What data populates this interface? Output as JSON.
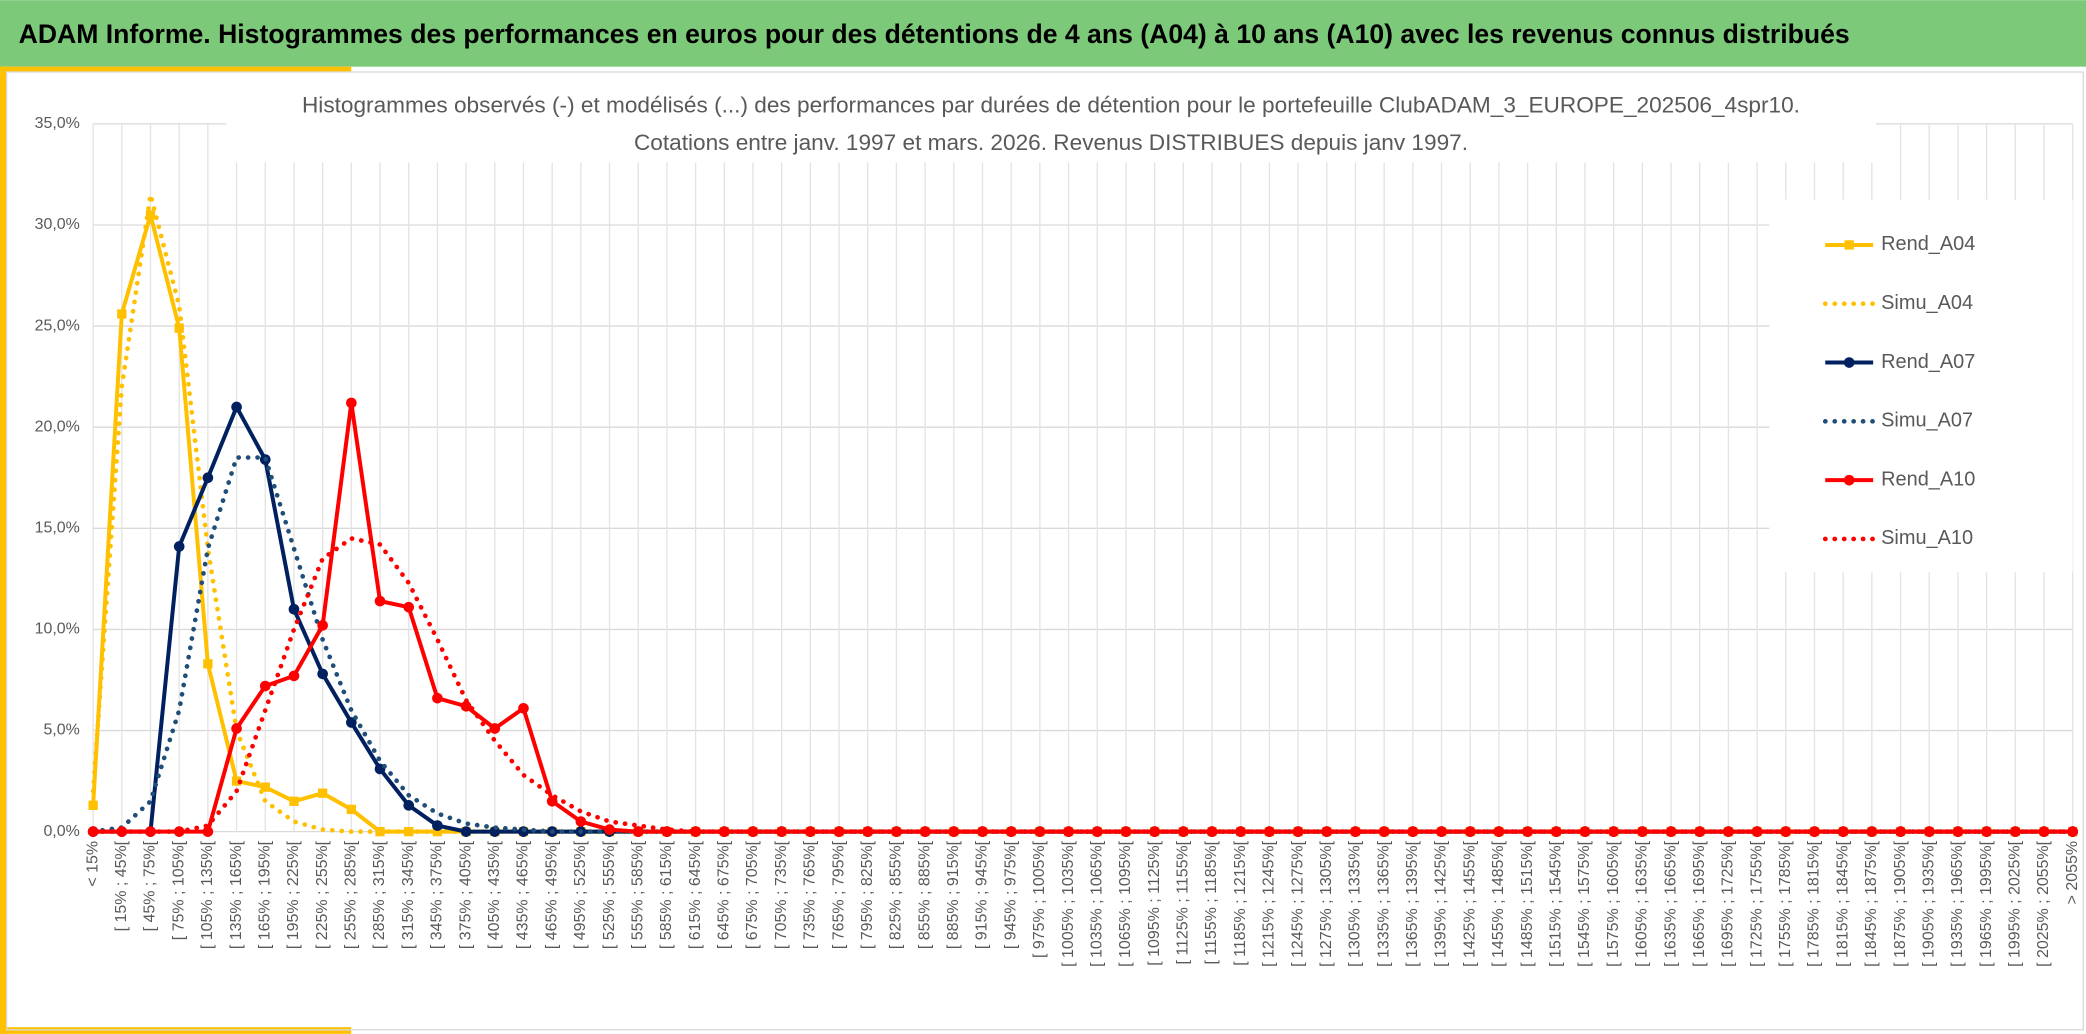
{
  "chart_data": {
    "type": "line",
    "header": "ADAM Informe. Histogrammes des performances en euros pour des détentions de 4 ans (A04) à 10 ans (A10) avec les revenus connus distribués",
    "title": "Histogrammes observés (-) et modélisés (...) des performances par durées de détention pour le portefeuille ClubADAM_3_EUROPE_202506_4spr10.",
    "subtitle": "Cotations entre janv. 1997 et mars. 2026. Revenus DISTRIBUES depuis janv 1997.",
    "categories": [
      "< 15%",
      "[ 15% ; 45%[",
      "[ 45% ; 75%[",
      "[ 75% ; 105%[",
      "[ 105% ; 135%[",
      "[ 135% ; 165%[",
      "[ 165% ; 195%[",
      "[ 195% ; 225%[",
      "[ 225% ; 255%[",
      "[ 255% ; 285%[",
      "[ 285% ; 315%[",
      "[ 315% ; 345%[",
      "[ 345% ; 375%[",
      "[ 375% ; 405%[",
      "[ 405% ; 435%[",
      "[ 435% ; 465%[",
      "[ 465% ; 495%[",
      "[ 495% ; 525%[",
      "[ 525% ; 555%[",
      "[ 555% ; 585%[",
      "[ 585% ; 615%[",
      "[ 615% ; 645%[",
      "[ 645% ; 675%[",
      "[ 675% ; 705%[",
      "[ 705% ; 735%[",
      "[ 735% ; 765%[",
      "[ 765% ; 795%[",
      "[ 795% ; 825%[",
      "[ 825% ; 855%[",
      "[ 855% ; 885%[",
      "[ 885% ; 915%[",
      "[ 915% ; 945%[",
      "[ 945% ; 975%[",
      "[ 975% ; 1005%[",
      "[ 1005% ; 1035%[",
      "[ 1035% ; 1065%[",
      "[ 1065% ; 1095%[",
      "[ 1095% ; 1125%[",
      "[ 1125% ; 1155%[",
      "[ 1155% ; 1185%[",
      "[ 1185% ; 1215%[",
      "[ 1215% ; 1245%[",
      "[ 1245% ; 1275%[",
      "[ 1275% ; 1305%[",
      "[ 1305% ; 1335%[",
      "[ 1335% ; 1365%[",
      "[ 1365% ; 1395%[",
      "[ 1395% ; 1425%[",
      "[ 1425% ; 1455%[",
      "[ 1455% ; 1485%[",
      "[ 1485% ; 1515%[",
      "[ 1515% ; 1545%[",
      "[ 1545% ; 1575%[",
      "[ 1575% ; 1605%[",
      "[ 1605% ; 1635%[",
      "[ 1635% ; 1665%[",
      "[ 1665% ; 1695%[",
      "[ 1695% ; 1725%[",
      "[ 1725% ; 1755%[",
      "[ 1755% ; 1785%[",
      "[ 1785% ; 1815%[",
      "[ 1815% ; 1845%[",
      "[ 1845% ; 1875%[",
      "[ 1875% ; 1905%[",
      "[ 1905% ; 1935%[",
      "[ 1935% ; 1965%[",
      "[ 1965% ; 1995%[",
      "[ 1995% ; 2025%[",
      "[ 2025% ; 2055%[",
      "> 2055%"
    ],
    "series": [
      {
        "name": "Rend_A04",
        "color": "#ffc000",
        "dash": "solid",
        "marker": "square",
        "values": [
          1.3,
          25.6,
          30.5,
          24.9,
          8.3,
          2.5,
          2.2,
          1.5,
          1.9,
          1.1,
          0,
          0,
          0,
          0,
          0,
          0,
          0,
          0,
          0,
          0,
          0,
          0,
          0,
          0,
          0,
          0,
          0,
          0,
          0,
          0,
          0,
          0,
          0,
          0,
          0,
          0,
          0,
          0,
          0,
          0,
          0,
          0,
          0,
          0,
          0,
          0,
          0,
          0,
          0,
          0,
          0,
          0,
          0,
          0,
          0,
          0,
          0,
          0,
          0,
          0,
          0,
          0,
          0,
          0,
          0,
          0,
          0,
          0,
          0,
          0
        ]
      },
      {
        "name": "Simu_A04",
        "color": "#ffc000",
        "dash": "dotted",
        "marker": "none",
        "values": [
          2,
          22,
          31.5,
          26,
          14,
          5,
          1.5,
          0.5,
          0.1,
          0,
          0,
          0,
          0,
          0,
          0,
          0,
          0,
          0,
          0,
          0,
          0,
          0,
          0,
          0,
          0,
          0,
          0,
          0,
          0,
          0,
          0,
          0,
          0,
          0,
          0,
          0,
          0,
          0,
          0,
          0,
          0,
          0,
          0,
          0,
          0,
          0,
          0,
          0,
          0,
          0,
          0,
          0,
          0,
          0,
          0,
          0,
          0,
          0,
          0,
          0,
          0,
          0,
          0,
          0,
          0,
          0,
          0,
          0,
          0,
          0
        ]
      },
      {
        "name": "Rend_A07",
        "color": "#002060",
        "dash": "solid",
        "marker": "circle",
        "values": [
          0,
          0,
          0,
          14.1,
          17.5,
          21,
          18.4,
          11,
          7.8,
          5.4,
          3.1,
          1.3,
          0.3,
          0,
          0,
          0,
          0,
          0,
          0,
          0,
          0,
          0,
          0,
          0,
          0,
          0,
          0,
          0,
          0,
          0,
          0,
          0,
          0,
          0,
          0,
          0,
          0,
          0,
          0,
          0,
          0,
          0,
          0,
          0,
          0,
          0,
          0,
          0,
          0,
          0,
          0,
          0,
          0,
          0,
          0,
          0,
          0,
          0,
          0,
          0,
          0,
          0,
          0,
          0,
          0,
          0,
          0,
          0,
          0,
          0
        ]
      },
      {
        "name": "Simu_A07",
        "color": "#1f4e79",
        "dash": "dotted",
        "marker": "none",
        "values": [
          0,
          0.2,
          1.5,
          6,
          14,
          18.5,
          18.5,
          14,
          9.5,
          6,
          3.5,
          1.8,
          0.9,
          0.4,
          0.2,
          0.1,
          0,
          0,
          0,
          0,
          0,
          0,
          0,
          0,
          0,
          0,
          0,
          0,
          0,
          0,
          0,
          0,
          0,
          0,
          0,
          0,
          0,
          0,
          0,
          0,
          0,
          0,
          0,
          0,
          0,
          0,
          0,
          0,
          0,
          0,
          0,
          0,
          0,
          0,
          0,
          0,
          0,
          0,
          0,
          0,
          0,
          0,
          0,
          0,
          0,
          0,
          0,
          0,
          0,
          0
        ]
      },
      {
        "name": "Rend_A10",
        "color": "#ff0000",
        "dash": "solid",
        "marker": "circle",
        "values": [
          0,
          0,
          0,
          0,
          0,
          5.1,
          7.2,
          7.7,
          10.2,
          21.2,
          11.4,
          11.1,
          6.6,
          6.2,
          5.1,
          6.1,
          1.5,
          0.5,
          0.1,
          0,
          0,
          0,
          0,
          0,
          0,
          0,
          0,
          0,
          0,
          0,
          0,
          0,
          0,
          0,
          0,
          0,
          0,
          0,
          0,
          0,
          0,
          0,
          0,
          0,
          0,
          0,
          0,
          0,
          0,
          0,
          0,
          0,
          0,
          0,
          0,
          0,
          0,
          0,
          0,
          0,
          0,
          0,
          0,
          0,
          0,
          0,
          0,
          0,
          0,
          0
        ]
      },
      {
        "name": "Simu_A10",
        "color": "#ff0000",
        "dash": "dotted",
        "marker": "none",
        "values": [
          0,
          0,
          0,
          0,
          0.3,
          2,
          6,
          10,
          13.5,
          14.5,
          14.2,
          12.3,
          9.5,
          6.5,
          4.5,
          2.8,
          1.8,
          1,
          0.5,
          0.3,
          0.1,
          0,
          0,
          0,
          0,
          0,
          0,
          0,
          0,
          0,
          0,
          0,
          0,
          0,
          0,
          0,
          0,
          0,
          0,
          0,
          0,
          0,
          0,
          0,
          0,
          0,
          0,
          0,
          0,
          0,
          0,
          0,
          0,
          0,
          0,
          0,
          0,
          0,
          0,
          0,
          0,
          0,
          0,
          0,
          0,
          0,
          0,
          0,
          0,
          0
        ]
      }
    ],
    "ylim": [
      0,
      35
    ],
    "yticks": [
      {
        "value": 0,
        "label": "0,0%"
      },
      {
        "value": 5,
        "label": "5,0%"
      },
      {
        "value": 10,
        "label": "10,0%"
      },
      {
        "value": 15,
        "label": "15,0%"
      },
      {
        "value": 20,
        "label": "20,0%"
      },
      {
        "value": 25,
        "label": "25,0%"
      },
      {
        "value": 30,
        "label": "30,0%"
      },
      {
        "value": 35,
        "label": "35,0%"
      }
    ],
    "grid": true,
    "legend": "right"
  }
}
